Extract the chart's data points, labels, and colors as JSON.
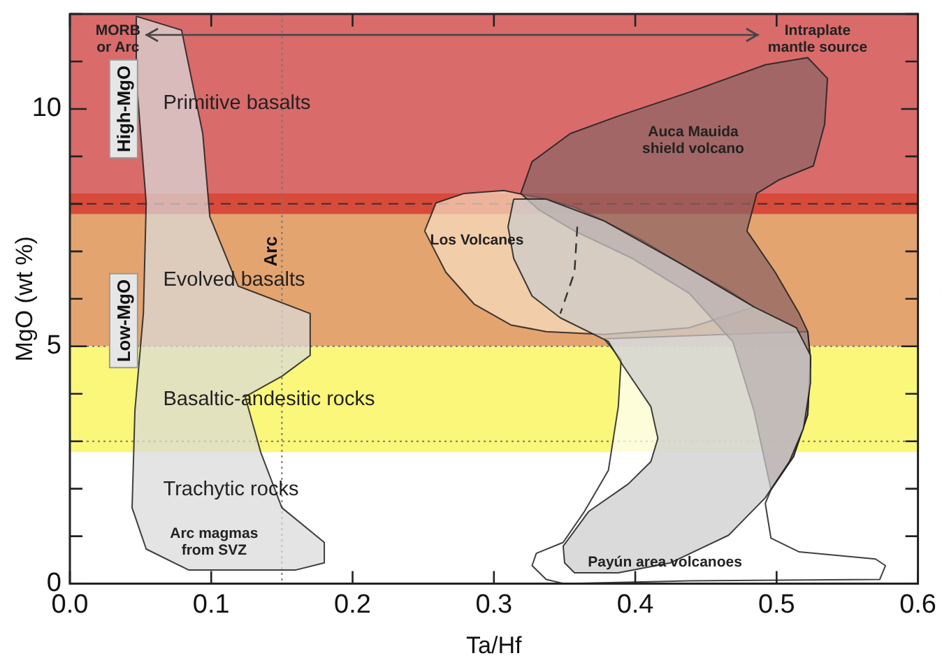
{
  "chart_data": {
    "type": "area",
    "xlabel": "Ta/Hf",
    "ylabel": "MgO (wt %)",
    "xlim": [
      0,
      0.6
    ],
    "ylim": [
      0,
      12
    ],
    "xticks": [
      {
        "value": 0,
        "label": "0.0"
      },
      {
        "value": 0.1,
        "label": "0.1"
      },
      {
        "value": 0.2,
        "label": "0.2"
      },
      {
        "value": 0.3,
        "label": "0.3"
      },
      {
        "value": 0.4,
        "label": "0.4"
      },
      {
        "value": 0.5,
        "label": "0.5"
      },
      {
        "value": 0.6,
        "label": "0.6"
      }
    ],
    "yticks": [
      0,
      {
        "value": 1,
        "label": null
      },
      {
        "value": 2,
        "label": null
      },
      {
        "value": 3,
        "label": null
      },
      {
        "value": 4,
        "label": null
      },
      5,
      {
        "value": 6,
        "label": null
      },
      {
        "value": 7,
        "label": null
      },
      {
        "value": 8,
        "label": null
      },
      {
        "value": 9,
        "label": null
      },
      10,
      {
        "value": 11,
        "label": null
      },
      {
        "value": 12,
        "label": null
      }
    ],
    "grid": false,
    "legend": false,
    "bands": [
      {
        "axis": "y",
        "from": 8.22,
        "to": 12,
        "color": "#d96b6b",
        "label": "Primitive basalts"
      },
      {
        "axis": "y",
        "from": 7.78,
        "to": 8.22,
        "color": "#d84a3a"
      },
      {
        "axis": "y",
        "from": 5,
        "to": 7.78,
        "color": "#e4a470",
        "label": "Evolved basalts"
      },
      {
        "axis": "y",
        "from": 2.77,
        "to": 5,
        "color": "#faf77a",
        "label": "Basaltic-andesitic rocks"
      }
    ],
    "ref_lines": [
      {
        "axis": "y",
        "value": 8,
        "line_style": "dashed",
        "color": "#333333"
      },
      {
        "axis": "y",
        "value": 5,
        "line_style": "dotted",
        "color": "#777777"
      },
      {
        "axis": "y",
        "value": 3,
        "line_style": "dotted",
        "color": "#777777"
      },
      {
        "axis": "x",
        "value": 0.15,
        "label": "Arc",
        "line_style": "dotted",
        "color": "#777777"
      }
    ],
    "series": [
      {
        "name": "Arc magmas\nfrom SVZ",
        "color": "#d9d9d9",
        "x": [
          0.047,
          0.079,
          0.094,
          0.099,
          0.119,
          0.17,
          0.17,
          0.15,
          0.124,
          0.135,
          0.15,
          0.18,
          0.18,
          0.16,
          0.084,
          0.054,
          0.044,
          0.046,
          0.052,
          0.054,
          0.047
        ],
        "values": [
          11.95,
          11.66,
          9.48,
          7.73,
          6.27,
          5.69,
          4.81,
          4.37,
          3.94,
          2.77,
          1.6,
          0.87,
          0.44,
          0.29,
          0.29,
          0.73,
          1.6,
          3.64,
          5.69,
          8.02,
          10.64
        ]
      },
      {
        "name": "Payún area volcanoes",
        "color": "#ffffff",
        "x": [
          0.378,
          0.39,
          0.388,
          0.381,
          0.364,
          0.349,
          0.33,
          0.327,
          0.337,
          0.35,
          0.438,
          0.573,
          0.577,
          0.57,
          0.516,
          0.496,
          0.492,
          0.496,
          0.512,
          0.522,
          0.524,
          0.522
        ],
        "values": [
          5.16,
          4.72,
          3.73,
          2.39,
          1.52,
          0.87,
          0.64,
          0.38,
          0.09,
          0,
          0.06,
          0.09,
          0.38,
          0.52,
          0.67,
          0.96,
          1.69,
          1.98,
          2.68,
          3.56,
          4.72,
          5.31
        ]
      },
      {
        "name": "Los Volcanes",
        "color": "#f5dcc0",
        "x": [
          0.251,
          0.259,
          0.279,
          0.307,
          0.337,
          0.357,
          0.378,
          0.405,
          0.431,
          0.466,
          0.484,
          0.438,
          0.378,
          0.337,
          0.312,
          0.286,
          0.266
        ],
        "values": [
          7.43,
          8.02,
          8.22,
          8.28,
          8.1,
          7.93,
          7.64,
          7.23,
          6.76,
          6.18,
          5.83,
          5.39,
          5.25,
          5.31,
          5.45,
          5.89,
          6.56
        ]
      },
      {
        "name": "Auca Mauida\nshield volcano",
        "color": "#8c6464",
        "x": [
          0.319,
          0.327,
          0.354,
          0.388,
          0.438,
          0.492,
          0.522,
          0.536,
          0.534,
          0.526,
          0.502,
          0.486,
          0.479,
          0.499,
          0.516,
          0.522,
          0.524,
          0.522,
          0.512,
          0.496,
          0.484,
          0.469,
          0.438,
          0.398,
          0.357,
          0.332
        ],
        "values": [
          8.22,
          8.89,
          9.48,
          9.85,
          10.35,
          10.93,
          11.08,
          10.64,
          9.68,
          8.8,
          8.51,
          8.22,
          7.43,
          6.56,
          5.69,
          5.31,
          4.72,
          3.56,
          2.68,
          1.98,
          3.64,
          5.1,
          6.12,
          6.85,
          7.43,
          7.87
        ]
      },
      {
        "color": "#cccccc",
        "x": [
          0.314,
          0.31,
          0.314,
          0.327,
          0.347,
          0.381,
          0.391,
          0.411,
          0.416,
          0.411,
          0.395,
          0.367,
          0.349,
          0.35,
          0.357,
          0.388,
          0.425,
          0.466,
          0.492,
          0.509,
          0.519,
          0.524,
          0.524,
          0.514,
          0.484,
          0.431,
          0.378,
          0.337
        ],
        "values": [
          8.1,
          7.52,
          6.85,
          6.06,
          5.6,
          5.1,
          4.61,
          3.73,
          3.06,
          2.57,
          2.1,
          1.52,
          0.79,
          0.44,
          0.23,
          0.23,
          0.44,
          1.02,
          1.81,
          2.57,
          3.27,
          4.23,
          4.81,
          5.39,
          5.83,
          6.76,
          7.64,
          8.1
        ]
      },
      {
        "type": "line",
        "line_style": "dashed",
        "color": "#333333",
        "x": [
          0.359,
          0.357,
          0.347
        ],
        "values": [
          7.52,
          6.56,
          5.69
        ]
      }
    ],
    "annotations": [
      "MORB\nor Arc",
      "Intraplate\nmantle source",
      "High-MgO",
      "Low-MgO",
      "Trachytic rocks"
    ]
  }
}
